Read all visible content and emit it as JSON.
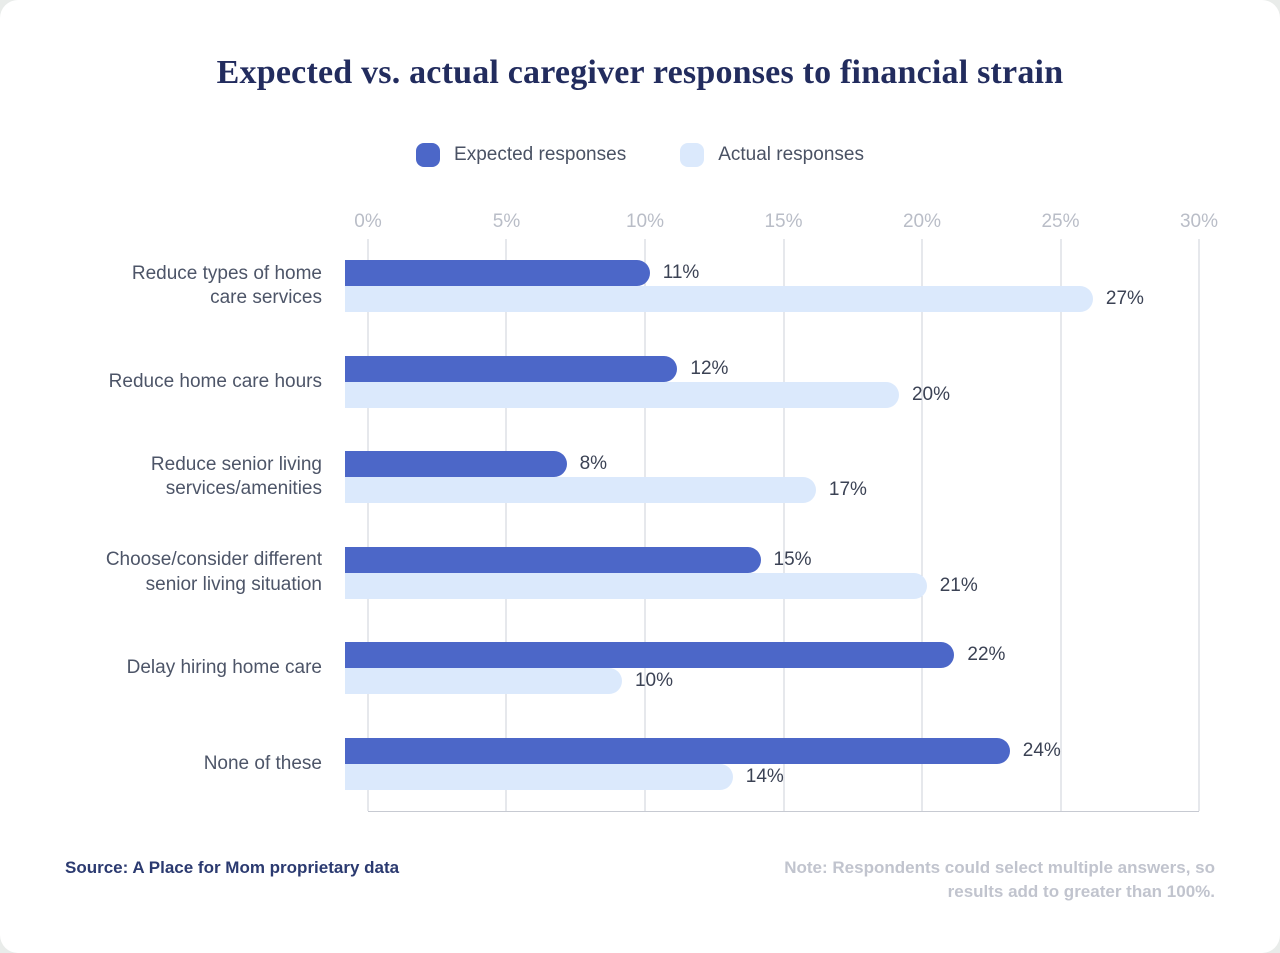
{
  "page": {
    "background": "#e9ecea",
    "card_background": "#ffffff"
  },
  "chart": {
    "title": "Expected vs. actual caregiver responses to financial strain",
    "title_color": "#222c5e"
  },
  "chart_data": {
    "type": "bar",
    "orientation": "horizontal",
    "title": "Expected vs. actual caregiver responses to financial strain",
    "categories": [
      "Reduce types of home\ncare services",
      "Reduce home care hours",
      "Reduce senior living\nservices/amenities",
      "Choose/consider different\nsenior living situation",
      "Delay hiring home care",
      "None of these"
    ],
    "series": [
      {
        "name": "Expected responses",
        "color": "#4c67c8",
        "values": [
          11,
          12,
          8,
          15,
          22,
          24
        ]
      },
      {
        "name": "Actual responses",
        "color": "#dbe9fc",
        "values": [
          27,
          20,
          17,
          21,
          10,
          14
        ]
      }
    ],
    "value_suffix": "%",
    "xlim": [
      0,
      30
    ],
    "x_ticks": [
      "0%",
      "5%",
      "10%",
      "15%",
      "20%",
      "25%",
      "30%"
    ],
    "grid": true,
    "legend_position": "top",
    "colors": {
      "tick_label": "#b9bdc7",
      "gridline": "#cdd0d8",
      "axis_line": "#c7cad2",
      "category_label": "#4d5568",
      "value_label": "#3b4254"
    }
  },
  "footer": {
    "source": "Source: A Place for Mom proprietary data",
    "note": "Note: Respondents could select multiple answers, so results add to greater than 100%."
  }
}
